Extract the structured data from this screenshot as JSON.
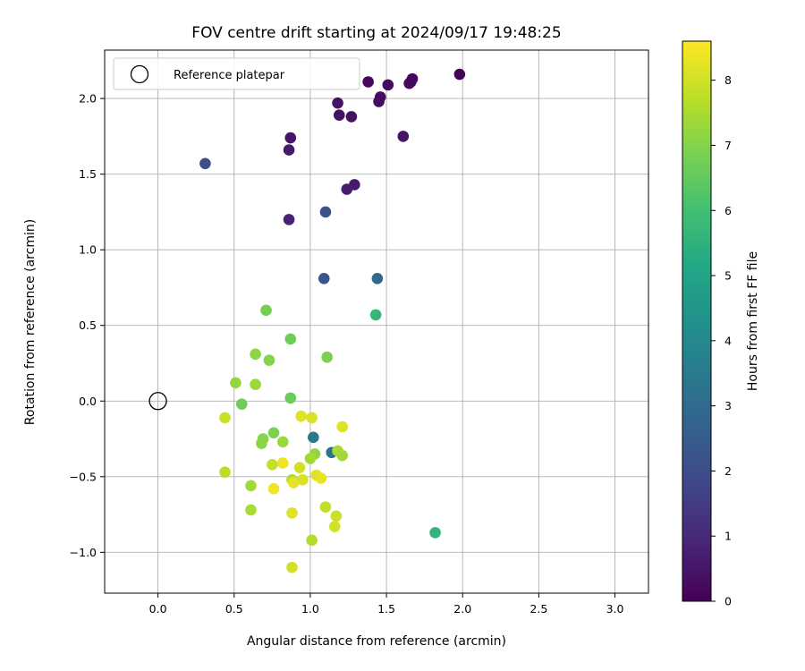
{
  "chart_data": {
    "type": "scatter",
    "title": "FOV centre drift starting at 2024/09/17 19:48:25",
    "xlabel": "Angular distance from reference (arcmin)",
    "ylabel": "Rotation from reference (arcmin)",
    "xlim": [
      -0.35,
      3.22
    ],
    "ylim": [
      -1.27,
      2.32
    ],
    "xticks": [
      0.0,
      0.5,
      1.0,
      1.5,
      2.0,
      2.5,
      3.0
    ],
    "xtick_labels": [
      "0.0",
      "0.5",
      "1.0",
      "1.5",
      "2.0",
      "2.5",
      "3.0"
    ],
    "yticks": [
      -1.0,
      -0.5,
      0.0,
      0.5,
      1.0,
      1.5,
      2.0
    ],
    "ytick_labels": [
      "−1.0",
      "−0.5",
      "0.0",
      "0.5",
      "1.0",
      "1.5",
      "2.0"
    ],
    "grid": true,
    "colormap": "viridis",
    "colorbar": {
      "label": "Hours from first FF file",
      "range": [
        0,
        8.6
      ],
      "ticks": [
        0,
        1,
        2,
        3,
        4,
        5,
        6,
        7,
        8
      ],
      "tick_labels": [
        "0",
        "1",
        "2",
        "3",
        "4",
        "5",
        "6",
        "7",
        "8"
      ]
    },
    "legend": {
      "placement": "upper-left",
      "entries": [
        {
          "label": "Reference platepar",
          "marker": "hollow-circle"
        }
      ]
    },
    "reference_point": {
      "x": 0.0,
      "y": 0.0
    },
    "points": [
      {
        "x": 1.98,
        "y": 2.16,
        "h": 0.1
      },
      {
        "x": 1.67,
        "y": 2.13,
        "h": 0.1
      },
      {
        "x": 1.66,
        "y": 2.11,
        "h": 0.2
      },
      {
        "x": 1.65,
        "y": 2.1,
        "h": 0.2
      },
      {
        "x": 1.38,
        "y": 2.11,
        "h": 0.2
      },
      {
        "x": 1.51,
        "y": 2.09,
        "h": 0.3
      },
      {
        "x": 1.46,
        "y": 2.01,
        "h": 0.3
      },
      {
        "x": 1.45,
        "y": 1.98,
        "h": 0.3
      },
      {
        "x": 1.18,
        "y": 1.97,
        "h": 0.4
      },
      {
        "x": 1.19,
        "y": 1.89,
        "h": 0.4
      },
      {
        "x": 1.27,
        "y": 1.88,
        "h": 0.4
      },
      {
        "x": 1.61,
        "y": 1.75,
        "h": 0.5
      },
      {
        "x": 0.87,
        "y": 1.74,
        "h": 0.5
      },
      {
        "x": 0.86,
        "y": 1.66,
        "h": 0.6
      },
      {
        "x": 1.29,
        "y": 1.43,
        "h": 0.6
      },
      {
        "x": 1.24,
        "y": 1.4,
        "h": 0.7
      },
      {
        "x": 0.86,
        "y": 1.2,
        "h": 0.8
      },
      {
        "x": 0.31,
        "y": 1.57,
        "h": 2.1
      },
      {
        "x": 1.1,
        "y": 1.25,
        "h": 2.2
      },
      {
        "x": 1.09,
        "y": 0.81,
        "h": 2.3
      },
      {
        "x": 1.44,
        "y": 0.81,
        "h": 2.9
      },
      {
        "x": 1.02,
        "y": -0.24,
        "h": 3.4
      },
      {
        "x": 1.14,
        "y": -0.34,
        "h": 3.3
      },
      {
        "x": 1.82,
        "y": -0.87,
        "h": 5.6
      },
      {
        "x": 1.43,
        "y": 0.57,
        "h": 5.7
      },
      {
        "x": 0.71,
        "y": 0.6,
        "h": 6.8
      },
      {
        "x": 0.87,
        "y": 0.41,
        "h": 6.7
      },
      {
        "x": 0.64,
        "y": 0.31,
        "h": 7.1
      },
      {
        "x": 0.73,
        "y": 0.27,
        "h": 7.0
      },
      {
        "x": 1.11,
        "y": 0.29,
        "h": 6.9
      },
      {
        "x": 0.51,
        "y": 0.12,
        "h": 7.2
      },
      {
        "x": 0.64,
        "y": 0.11,
        "h": 7.3
      },
      {
        "x": 0.87,
        "y": 0.02,
        "h": 6.6
      },
      {
        "x": 0.55,
        "y": -0.02,
        "h": 6.7
      },
      {
        "x": 0.44,
        "y": -0.11,
        "h": 7.9
      },
      {
        "x": 0.94,
        "y": -0.1,
        "h": 8.2
      },
      {
        "x": 1.01,
        "y": -0.11,
        "h": 8.1
      },
      {
        "x": 1.21,
        "y": -0.17,
        "h": 8.2
      },
      {
        "x": 0.76,
        "y": -0.21,
        "h": 6.9
      },
      {
        "x": 0.69,
        "y": -0.25,
        "h": 7.0
      },
      {
        "x": 0.68,
        "y": -0.28,
        "h": 7.1
      },
      {
        "x": 0.82,
        "y": -0.27,
        "h": 7.3
      },
      {
        "x": 1.18,
        "y": -0.33,
        "h": 7.5
      },
      {
        "x": 1.21,
        "y": -0.36,
        "h": 7.4
      },
      {
        "x": 1.03,
        "y": -0.35,
        "h": 7.2
      },
      {
        "x": 1.0,
        "y": -0.38,
        "h": 7.4
      },
      {
        "x": 0.82,
        "y": -0.41,
        "h": 8.4
      },
      {
        "x": 0.75,
        "y": -0.42,
        "h": 7.8
      },
      {
        "x": 0.93,
        "y": -0.44,
        "h": 8.0
      },
      {
        "x": 0.44,
        "y": -0.47,
        "h": 7.7
      },
      {
        "x": 1.04,
        "y": -0.49,
        "h": 8.2
      },
      {
        "x": 1.07,
        "y": -0.51,
        "h": 8.3
      },
      {
        "x": 0.95,
        "y": -0.52,
        "h": 8.1
      },
      {
        "x": 0.88,
        "y": -0.52,
        "h": 7.6
      },
      {
        "x": 0.89,
        "y": -0.54,
        "h": 8.3
      },
      {
        "x": 0.61,
        "y": -0.56,
        "h": 7.4
      },
      {
        "x": 0.76,
        "y": -0.58,
        "h": 8.4
      },
      {
        "x": 1.1,
        "y": -0.7,
        "h": 7.8
      },
      {
        "x": 0.61,
        "y": -0.72,
        "h": 7.5
      },
      {
        "x": 0.88,
        "y": -0.74,
        "h": 8.2
      },
      {
        "x": 1.17,
        "y": -0.76,
        "h": 7.9
      },
      {
        "x": 1.16,
        "y": -0.83,
        "h": 8.0
      },
      {
        "x": 1.01,
        "y": -0.92,
        "h": 7.6
      },
      {
        "x": 0.88,
        "y": -1.1,
        "h": 8.0
      }
    ]
  }
}
